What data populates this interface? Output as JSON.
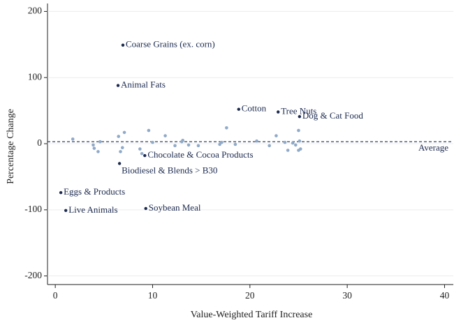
{
  "chart_data": {
    "type": "scatter",
    "x_label": "Value-Weighted Tariff Increase",
    "y_label": "Percentage Change",
    "xlim": [
      -0.8,
      40.9
    ],
    "ylim": [
      -213,
      212
    ],
    "xticks": [
      0,
      10,
      20,
      30,
      40
    ],
    "yticks": [
      -200,
      -100,
      0,
      100,
      200
    ],
    "grid": true,
    "series": [
      {
        "color": "#1c2a4f",
        "x": [
          6.95,
          6.45,
          18.85,
          22.9,
          25.1,
          9.2,
          6.6,
          0.57,
          1.08,
          9.3
        ],
        "values": [
          149,
          88,
          52,
          48,
          41,
          -18,
          -30,
          -74,
          -101,
          -98
        ],
        "labels": [
          "Coarse Grains (ex. corn)",
          "Animal Fats",
          "Cotton",
          "Tree Nuts",
          "Dog & Cat Food",
          "Chocolate & Cocoa Products",
          "Biodiesel & Blends > B30",
          "Eggs & Products",
          "Live Animals",
          "Soybean Meal"
        ]
      },
      {
        "color": "#8fa9c8",
        "x": [
          1.8,
          3.9,
          4.0,
          4.4,
          4.6,
          6.5,
          6.9,
          7.1,
          6.7,
          8.7,
          8.9,
          9.6,
          10.0,
          11.3,
          12.3,
          13.0,
          13.1,
          13.7,
          14.7,
          16.9,
          17.1,
          17.6,
          18.5,
          20.7,
          22.0,
          22.7,
          23.9,
          24.4,
          24.7,
          25.0,
          25.1,
          25.2,
          25.0,
          23.6
        ],
        "values": [
          7,
          -2,
          -7,
          -12,
          3,
          11,
          -6,
          17,
          -12,
          -8,
          -15,
          20,
          2,
          12,
          -3,
          3,
          5,
          -2,
          -3,
          -1,
          2,
          24,
          -1,
          4,
          -3,
          12,
          -10,
          1,
          -2,
          20,
          4,
          -8,
          -10,
          2
        ]
      }
    ],
    "reference_line": {
      "value": 3,
      "label": "Average",
      "style": "dashed",
      "color": "#1c2a4f"
    }
  }
}
